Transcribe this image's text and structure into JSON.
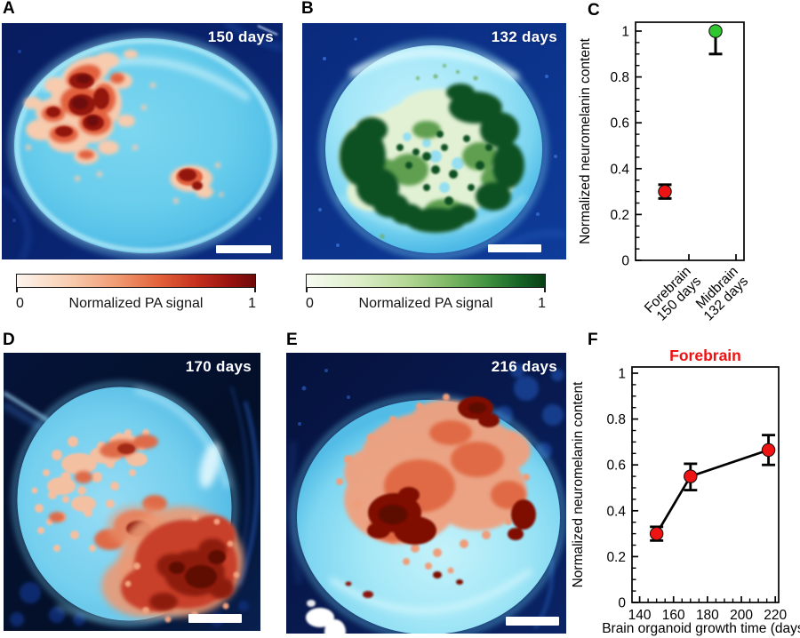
{
  "panels": {
    "a": {
      "label": "A",
      "day_label": "150 days",
      "colorbar": {
        "min": "0",
        "label": "Normalized PA signal",
        "max": "1"
      }
    },
    "b": {
      "label": "B",
      "day_label": "132 days",
      "colorbar": {
        "min": "0",
        "label": "Normalized PA signal",
        "max": "1"
      }
    },
    "c": {
      "label": "C"
    },
    "d": {
      "label": "D",
      "day_label": "170 days"
    },
    "e": {
      "label": "E",
      "day_label": "216 days"
    },
    "f": {
      "label": "F"
    }
  },
  "colors": {
    "marker_red": "#ee1414",
    "marker_green": "#2ec82e",
    "axis": "#000000",
    "title_red": "#ee1111"
  },
  "chart_data": [
    {
      "id": "C",
      "type": "scatter",
      "categories": [
        "Forebrain 150 days",
        "Midbrain 132 days"
      ],
      "category_lines": [
        [
          "Forebrain",
          "150 days"
        ],
        [
          "Midbrain",
          "132 days"
        ]
      ],
      "points": [
        {
          "category": "Forebrain 150 days",
          "y": 0.3,
          "err_low": 0.27,
          "err_high": 0.33,
          "color": "#ee1414"
        },
        {
          "category": "Midbrain 132 days",
          "y": 1.0,
          "err_low": 0.9,
          "err_high": 1.0,
          "color": "#2ec82e"
        }
      ],
      "ylabel": "Normalized neuromelanin content",
      "ylim": [
        0,
        1.04
      ],
      "yticks": [
        0,
        0.2,
        0.4,
        0.6,
        0.8,
        1
      ],
      "ytick_labels": [
        "0",
        "0.2",
        "0.4",
        "0.6",
        "0.8",
        "1"
      ],
      "y_minor_step": 0.05,
      "grid": false,
      "legend": "none"
    },
    {
      "id": "F",
      "type": "line",
      "title": "Forebrain",
      "title_color": "#ee1111",
      "x": [
        150,
        170,
        216
      ],
      "y": [
        0.3,
        0.55,
        0.665
      ],
      "err_low": [
        0.27,
        0.49,
        0.6
      ],
      "err_high": [
        0.33,
        0.605,
        0.73
      ],
      "marker_color": "#ee1414",
      "line_color": "#000000",
      "xlabel": "Brain organoid growth time (days)",
      "ylabel": "Normalized neuromelanin content",
      "xlim": [
        135.5,
        222
      ],
      "ylim": [
        0,
        1.03
      ],
      "xticks": [
        140,
        160,
        180,
        200,
        220
      ],
      "x_minor_step": 5,
      "yticks": [
        0,
        0.2,
        0.4,
        0.6,
        0.8,
        1
      ],
      "ytick_labels": [
        "0",
        "0.2",
        "0.4",
        "0.6",
        "0.8",
        "1"
      ],
      "y_minor_step": 0.05,
      "grid": false,
      "legend": "none"
    }
  ]
}
